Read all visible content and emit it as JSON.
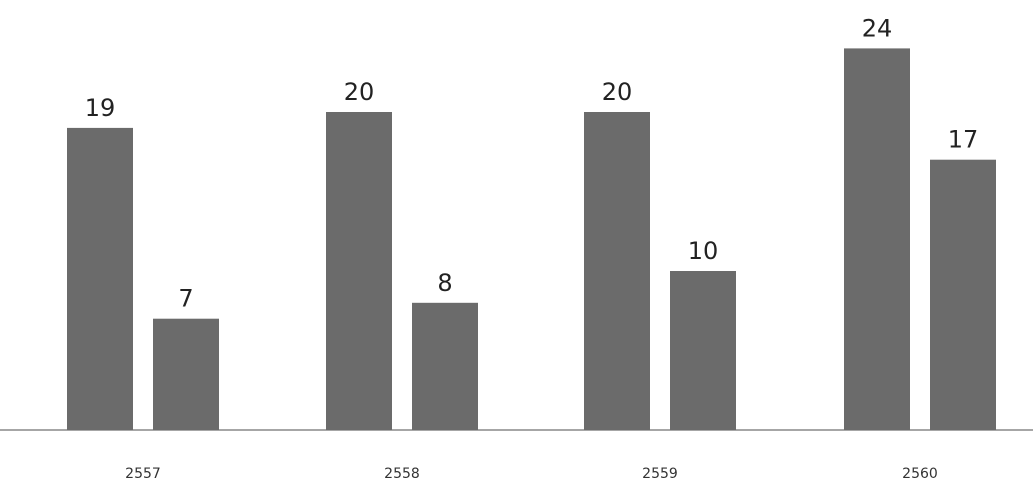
{
  "chart_data": {
    "type": "bar",
    "categories": [
      "2557",
      "2558",
      "2559",
      "2560"
    ],
    "series": [
      {
        "values": [
          19,
          20,
          20,
          24
        ]
      },
      {
        "values": [
          7,
          8,
          10,
          17
        ]
      }
    ],
    "ylim": [
      0,
      24
    ],
    "grid": false,
    "legend": "none",
    "bar_color": "#6b6b6b"
  }
}
